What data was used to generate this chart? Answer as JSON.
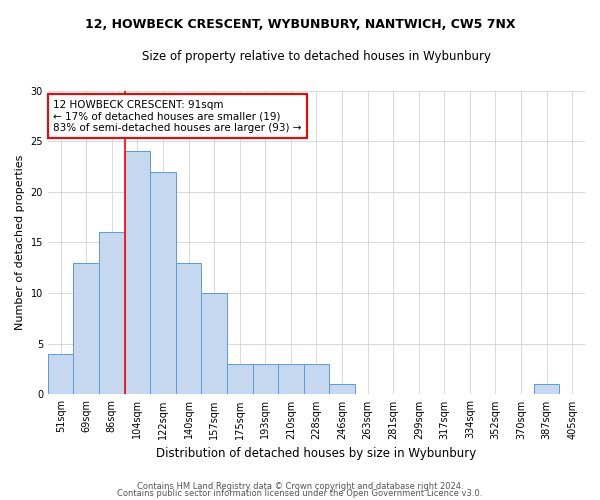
{
  "title": "12, HOWBECK CRESCENT, WYBUNBURY, NANTWICH, CW5 7NX",
  "subtitle": "Size of property relative to detached houses in Wybunbury",
  "xlabel": "Distribution of detached houses by size in Wybunbury",
  "ylabel": "Number of detached properties",
  "categories": [
    "51sqm",
    "69sqm",
    "86sqm",
    "104sqm",
    "122sqm",
    "140sqm",
    "157sqm",
    "175sqm",
    "193sqm",
    "210sqm",
    "228sqm",
    "246sqm",
    "263sqm",
    "281sqm",
    "299sqm",
    "317sqm",
    "334sqm",
    "352sqm",
    "370sqm",
    "387sqm",
    "405sqm"
  ],
  "values": [
    4,
    13,
    16,
    24,
    22,
    13,
    10,
    3,
    3,
    3,
    3,
    1,
    0,
    0,
    0,
    0,
    0,
    0,
    0,
    1,
    0
  ],
  "bar_color": "#c5d8f0",
  "bar_edge_color": "#5b9bd5",
  "annotation_text": "12 HOWBECK CRESCENT: 91sqm\n← 17% of detached houses are smaller (19)\n83% of semi-detached houses are larger (93) →",
  "annotation_box_color": "white",
  "annotation_box_edge_color": "red",
  "property_line_color": "red",
  "ylim": [
    0,
    30
  ],
  "yticks": [
    0,
    5,
    10,
    15,
    20,
    25,
    30
  ],
  "footer1": "Contains HM Land Registry data © Crown copyright and database right 2024.",
  "footer2": "Contains public sector information licensed under the Open Government Licence v3.0."
}
